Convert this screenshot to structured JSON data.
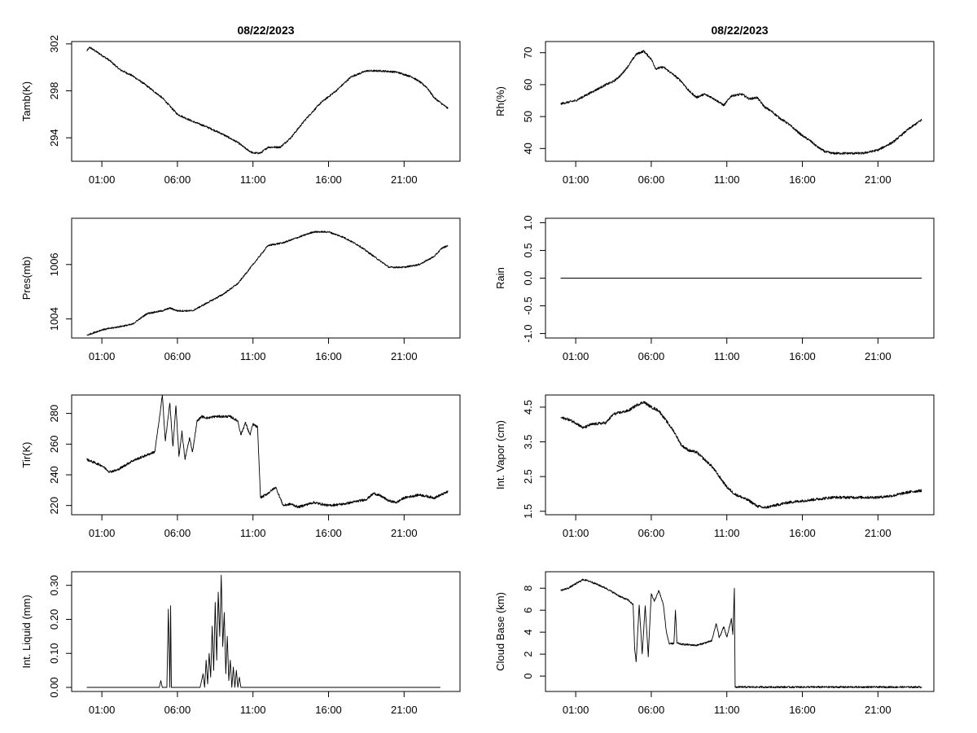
{
  "chart_data": [
    {
      "id": "tamb",
      "type": "line",
      "title": "08/22/2023",
      "xlabel": "",
      "ylabel": "Tamb(K)",
      "x_unit": "hour of day",
      "xlim": [
        -1,
        24.7
      ],
      "ylim": [
        292,
        302.2
      ],
      "xticks": [
        1,
        6,
        11,
        16,
        21
      ],
      "xtick_labels": [
        "01:00",
        "06:00",
        "11:00",
        "16:00",
        "21:00"
      ],
      "yticks": [
        294,
        298,
        302
      ],
      "ytick_labels": [
        "294",
        "298",
        "302"
      ],
      "noise": 0.08,
      "points": [
        [
          0,
          301.4
        ],
        [
          0.2,
          301.7
        ],
        [
          0.8,
          301.2
        ],
        [
          1.5,
          300.6
        ],
        [
          2.2,
          299.8
        ],
        [
          3,
          299.3
        ],
        [
          3.8,
          298.6
        ],
        [
          5,
          297.4
        ],
        [
          6,
          296
        ],
        [
          7,
          295.4
        ],
        [
          8,
          294.9
        ],
        [
          9,
          294.3
        ],
        [
          10,
          293.6
        ],
        [
          10.6,
          293
        ],
        [
          11,
          292.7
        ],
        [
          11.5,
          292.7
        ],
        [
          12,
          293.2
        ],
        [
          12.8,
          293.2
        ],
        [
          13.5,
          294
        ],
        [
          14.5,
          295.6
        ],
        [
          15.5,
          297
        ],
        [
          16.5,
          298
        ],
        [
          17.5,
          299.2
        ],
        [
          18.5,
          299.7
        ],
        [
          19.5,
          299.7
        ],
        [
          20.5,
          299.6
        ],
        [
          21.5,
          299.2
        ],
        [
          22,
          298.8
        ],
        [
          22.5,
          298.3
        ],
        [
          23,
          297.4
        ],
        [
          23.5,
          296.9
        ],
        [
          23.9,
          296.5
        ]
      ]
    },
    {
      "id": "rh",
      "type": "line",
      "title": "08/22/2023",
      "xlabel": "",
      "ylabel": "Rh(%)",
      "x_unit": "hour of day",
      "xlim": [
        -1,
        24.7
      ],
      "ylim": [
        36,
        73.5
      ],
      "xticks": [
        1,
        6,
        11,
        16,
        21
      ],
      "xtick_labels": [
        "01:00",
        "06:00",
        "11:00",
        "16:00",
        "21:00"
      ],
      "yticks": [
        40,
        50,
        60,
        70
      ],
      "ytick_labels": [
        "40",
        "50",
        "60",
        "70"
      ],
      "noise": 0.35,
      "points": [
        [
          0,
          54
        ],
        [
          0.5,
          54.5
        ],
        [
          1,
          55
        ],
        [
          2,
          57.5
        ],
        [
          3,
          60
        ],
        [
          3.5,
          61
        ],
        [
          4,
          63
        ],
        [
          4.5,
          66
        ],
        [
          5,
          69.5
        ],
        [
          5.5,
          70.5
        ],
        [
          6,
          68
        ],
        [
          6.3,
          65
        ],
        [
          6.8,
          65.5
        ],
        [
          7.5,
          63
        ],
        [
          8,
          61
        ],
        [
          8.5,
          58
        ],
        [
          9,
          56
        ],
        [
          9.5,
          57
        ],
        [
          10,
          56
        ],
        [
          10.5,
          54.5
        ],
        [
          10.8,
          53.5
        ],
        [
          11.3,
          56.5
        ],
        [
          12,
          57
        ],
        [
          12.5,
          55.5
        ],
        [
          13,
          56
        ],
        [
          13.5,
          53
        ],
        [
          14,
          51.5
        ],
        [
          14.5,
          49.5
        ],
        [
          15,
          48
        ],
        [
          15.5,
          46
        ],
        [
          16,
          44
        ],
        [
          16.5,
          42.5
        ],
        [
          17,
          40.5
        ],
        [
          17.5,
          39
        ],
        [
          18,
          38.5
        ],
        [
          19,
          38.5
        ],
        [
          20,
          38.5
        ],
        [
          21,
          39.5
        ],
        [
          22,
          42
        ],
        [
          23,
          46
        ],
        [
          23.9,
          49
        ]
      ]
    },
    {
      "id": "pres",
      "type": "line",
      "title": "",
      "xlabel": "",
      "ylabel": "Pres(mb)",
      "x_unit": "hour of day",
      "xlim": [
        -1,
        24.7
      ],
      "ylim": [
        1003.3,
        1007.7
      ],
      "xticks": [
        1,
        6,
        11,
        16,
        21
      ],
      "xtick_labels": [
        "01:00",
        "06:00",
        "11:00",
        "16:00",
        "21:00"
      ],
      "yticks": [
        1004,
        1006
      ],
      "ytick_labels": [
        "1004",
        "1006"
      ],
      "noise": 0.03,
      "points": [
        [
          0,
          1003.4
        ],
        [
          1,
          1003.6
        ],
        [
          2,
          1003.7
        ],
        [
          3,
          1003.8
        ],
        [
          4,
          1004.2
        ],
        [
          5,
          1004.3
        ],
        [
          5.5,
          1004.4
        ],
        [
          6,
          1004.3
        ],
        [
          7,
          1004.3
        ],
        [
          8,
          1004.6
        ],
        [
          9,
          1004.9
        ],
        [
          10,
          1005.3
        ],
        [
          11,
          1006
        ],
        [
          12,
          1006.7
        ],
        [
          13,
          1006.8
        ],
        [
          14,
          1007
        ],
        [
          15,
          1007.2
        ],
        [
          16,
          1007.2
        ],
        [
          17,
          1007
        ],
        [
          18,
          1006.7
        ],
        [
          19,
          1006.3
        ],
        [
          20,
          1005.9
        ],
        [
          21,
          1005.9
        ],
        [
          22,
          1006
        ],
        [
          23,
          1006.3
        ],
        [
          23.5,
          1006.6
        ],
        [
          23.9,
          1006.7
        ]
      ]
    },
    {
      "id": "rain",
      "type": "line",
      "title": "",
      "xlabel": "",
      "ylabel": "Rain",
      "x_unit": "hour of day",
      "xlim": [
        -1,
        24.7
      ],
      "ylim": [
        -1.08,
        1.08
      ],
      "xticks": [
        1,
        6,
        11,
        16,
        21
      ],
      "xtick_labels": [
        "01:00",
        "06:00",
        "11:00",
        "16:00",
        "21:00"
      ],
      "yticks": [
        -1,
        -0.5,
        0,
        0.5,
        1
      ],
      "ytick_labels": [
        "-1.0",
        "-0.5",
        "0.0",
        "0.5",
        "1.0"
      ],
      "noise": 0,
      "points": [
        [
          0,
          0
        ],
        [
          23.9,
          0
        ]
      ]
    },
    {
      "id": "tir",
      "type": "line",
      "title": "",
      "xlabel": "",
      "ylabel": "Tir(K)",
      "x_unit": "hour of day",
      "xlim": [
        -1,
        24.7
      ],
      "ylim": [
        214,
        292
      ],
      "xticks": [
        1,
        6,
        11,
        16,
        21
      ],
      "xtick_labels": [
        "01:00",
        "06:00",
        "11:00",
        "16:00",
        "21:00"
      ],
      "yticks": [
        220,
        240,
        260,
        280
      ],
      "ytick_labels": [
        "220",
        "240",
        "260",
        "280"
      ],
      "noise": 0.8,
      "points": [
        [
          0,
          250
        ],
        [
          0.5,
          248
        ],
        [
          1,
          246
        ],
        [
          1.5,
          242
        ],
        [
          2,
          243
        ],
        [
          3,
          249
        ],
        [
          4,
          253
        ],
        [
          4.5,
          255
        ],
        [
          4.8,
          276
        ],
        [
          5,
          292
        ],
        [
          5.2,
          262
        ],
        [
          5.5,
          287
        ],
        [
          5.7,
          258
        ],
        [
          5.9,
          285
        ],
        [
          6.1,
          252
        ],
        [
          6.3,
          268
        ],
        [
          6.5,
          250
        ],
        [
          6.8,
          264
        ],
        [
          7,
          255
        ],
        [
          7.3,
          275
        ],
        [
          7.6,
          278
        ],
        [
          8,
          277
        ],
        [
          8.5,
          278
        ],
        [
          9,
          278
        ],
        [
          9.5,
          278
        ],
        [
          10,
          275
        ],
        [
          10.2,
          266
        ],
        [
          10.5,
          274
        ],
        [
          10.8,
          266
        ],
        [
          11,
          273
        ],
        [
          11.3,
          271
        ],
        [
          11.5,
          225
        ],
        [
          12,
          228
        ],
        [
          12.5,
          232
        ],
        [
          13,
          220
        ],
        [
          13.5,
          221
        ],
        [
          14,
          219
        ],
        [
          15,
          222
        ],
        [
          16,
          220
        ],
        [
          17,
          221
        ],
        [
          18,
          223
        ],
        [
          18.5,
          224
        ],
        [
          19,
          228
        ],
        [
          19.5,
          226
        ],
        [
          20,
          223
        ],
        [
          20.5,
          222
        ],
        [
          21,
          225
        ],
        [
          22,
          227
        ],
        [
          23,
          225
        ],
        [
          23.9,
          229
        ]
      ]
    },
    {
      "id": "vapor",
      "type": "line",
      "title": "",
      "xlabel": "",
      "ylabel": "Int. Vapor (cm)",
      "x_unit": "hour of day",
      "xlim": [
        -1,
        24.7
      ],
      "ylim": [
        1.4,
        4.85
      ],
      "xticks": [
        1,
        6,
        11,
        16,
        21
      ],
      "xtick_labels": [
        "01:00",
        "06:00",
        "11:00",
        "16:00",
        "21:00"
      ],
      "yticks": [
        1.5,
        2.5,
        3.5,
        4.5
      ],
      "ytick_labels": [
        "1.5",
        "2.5",
        "3.5",
        "4.5"
      ],
      "noise": 0.04,
      "points": [
        [
          0,
          4.2
        ],
        [
          0.5,
          4.15
        ],
        [
          1,
          4.05
        ],
        [
          1.5,
          3.9
        ],
        [
          2,
          4
        ],
        [
          3,
          4.05
        ],
        [
          3.5,
          4.3
        ],
        [
          4,
          4.35
        ],
        [
          4.5,
          4.4
        ],
        [
          5,
          4.55
        ],
        [
          5.5,
          4.65
        ],
        [
          6,
          4.5
        ],
        [
          6.5,
          4.4
        ],
        [
          7,
          4.1
        ],
        [
          7.5,
          3.8
        ],
        [
          8,
          3.4
        ],
        [
          8.5,
          3.25
        ],
        [
          9,
          3.2
        ],
        [
          9.5,
          3
        ],
        [
          10,
          2.8
        ],
        [
          10.5,
          2.5
        ],
        [
          11,
          2.2
        ],
        [
          11.5,
          2
        ],
        [
          12,
          1.9
        ],
        [
          12.5,
          1.8
        ],
        [
          13,
          1.65
        ],
        [
          13.5,
          1.6
        ],
        [
          14,
          1.65
        ],
        [
          15,
          1.75
        ],
        [
          16,
          1.8
        ],
        [
          17,
          1.85
        ],
        [
          18,
          1.9
        ],
        [
          19,
          1.9
        ],
        [
          20,
          1.9
        ],
        [
          21,
          1.9
        ],
        [
          22,
          1.95
        ],
        [
          23,
          2.05
        ],
        [
          23.9,
          2.1
        ]
      ]
    },
    {
      "id": "liquid",
      "type": "line",
      "title": "",
      "xlabel": "",
      "ylabel": "Int. Liquid (mm)",
      "x_unit": "hour of day",
      "xlim": [
        -1,
        24.7
      ],
      "ylim": [
        -0.012,
        0.34
      ],
      "xticks": [
        1,
        6,
        11,
        16,
        21
      ],
      "xtick_labels": [
        "01:00",
        "06:00",
        "11:00",
        "16:00",
        "21:00"
      ],
      "yticks": [
        0,
        0.1,
        0.2,
        0.3
      ],
      "ytick_labels": [
        "0.00",
        "0.10",
        "0.20",
        "0.30"
      ],
      "noise": 0,
      "points": [
        [
          0,
          0
        ],
        [
          4.8,
          0
        ],
        [
          4.9,
          0.02
        ],
        [
          5,
          0
        ],
        [
          5.3,
          0
        ],
        [
          5.4,
          0.23
        ],
        [
          5.5,
          0
        ],
        [
          5.55,
          0.24
        ],
        [
          5.6,
          0
        ],
        [
          7.5,
          0
        ],
        [
          7.7,
          0.04
        ],
        [
          7.8,
          0
        ],
        [
          7.9,
          0.08
        ],
        [
          8,
          0.01
        ],
        [
          8.1,
          0.1
        ],
        [
          8.2,
          0.03
        ],
        [
          8.3,
          0.18
        ],
        [
          8.4,
          0.05
        ],
        [
          8.5,
          0.25
        ],
        [
          8.6,
          0.08
        ],
        [
          8.7,
          0.28
        ],
        [
          8.8,
          0.15
        ],
        [
          8.9,
          0.33
        ],
        [
          9,
          0.12
        ],
        [
          9.1,
          0.22
        ],
        [
          9.2,
          0.04
        ],
        [
          9.3,
          0.15
        ],
        [
          9.4,
          0.02
        ],
        [
          9.5,
          0.08
        ],
        [
          9.6,
          0
        ],
        [
          9.7,
          0.06
        ],
        [
          9.8,
          0
        ],
        [
          9.9,
          0.05
        ],
        [
          10,
          0
        ],
        [
          10.1,
          0.03
        ],
        [
          10.2,
          0
        ],
        [
          23.4,
          0
        ]
      ]
    },
    {
      "id": "cloudbase",
      "type": "line",
      "title": "",
      "xlabel": "",
      "ylabel": "Cloud Base (km)",
      "x_unit": "hour of day",
      "xlim": [
        -1,
        24.7
      ],
      "ylim": [
        -1.4,
        9.5
      ],
      "xticks": [
        1,
        6,
        11,
        16,
        21
      ],
      "xtick_labels": [
        "01:00",
        "06:00",
        "11:00",
        "16:00",
        "21:00"
      ],
      "yticks": [
        0,
        2,
        4,
        6,
        8
      ],
      "ytick_labels": [
        "0",
        "2",
        "4",
        "6",
        "8"
      ],
      "noise": 0.08,
      "points": [
        [
          0,
          7.8
        ],
        [
          0.5,
          8
        ],
        [
          1,
          8.4
        ],
        [
          1.5,
          8.8
        ],
        [
          2,
          8.6
        ],
        [
          2.5,
          8.3
        ],
        [
          3,
          8
        ],
        [
          3.5,
          7.6
        ],
        [
          4,
          7.2
        ],
        [
          4.5,
          6.9
        ],
        [
          4.8,
          6.5
        ],
        [
          4.9,
          2.5
        ],
        [
          5,
          1.3
        ],
        [
          5.2,
          6.5
        ],
        [
          5.4,
          2
        ],
        [
          5.6,
          6.4
        ],
        [
          5.8,
          1.8
        ],
        [
          6,
          7.5
        ],
        [
          6.2,
          6.8
        ],
        [
          6.5,
          7.8
        ],
        [
          6.8,
          6.5
        ],
        [
          7,
          4
        ],
        [
          7.2,
          2.9
        ],
        [
          7.5,
          3
        ],
        [
          7.6,
          6
        ],
        [
          7.7,
          3
        ],
        [
          8,
          2.9
        ],
        [
          9,
          2.8
        ],
        [
          10,
          3.2
        ],
        [
          10.3,
          4.8
        ],
        [
          10.5,
          3.5
        ],
        [
          10.8,
          4.5
        ],
        [
          11,
          3.5
        ],
        [
          11.3,
          5.2
        ],
        [
          11.4,
          3.8
        ],
        [
          11.5,
          8
        ],
        [
          11.55,
          -1
        ],
        [
          23.9,
          -1
        ]
      ]
    }
  ]
}
